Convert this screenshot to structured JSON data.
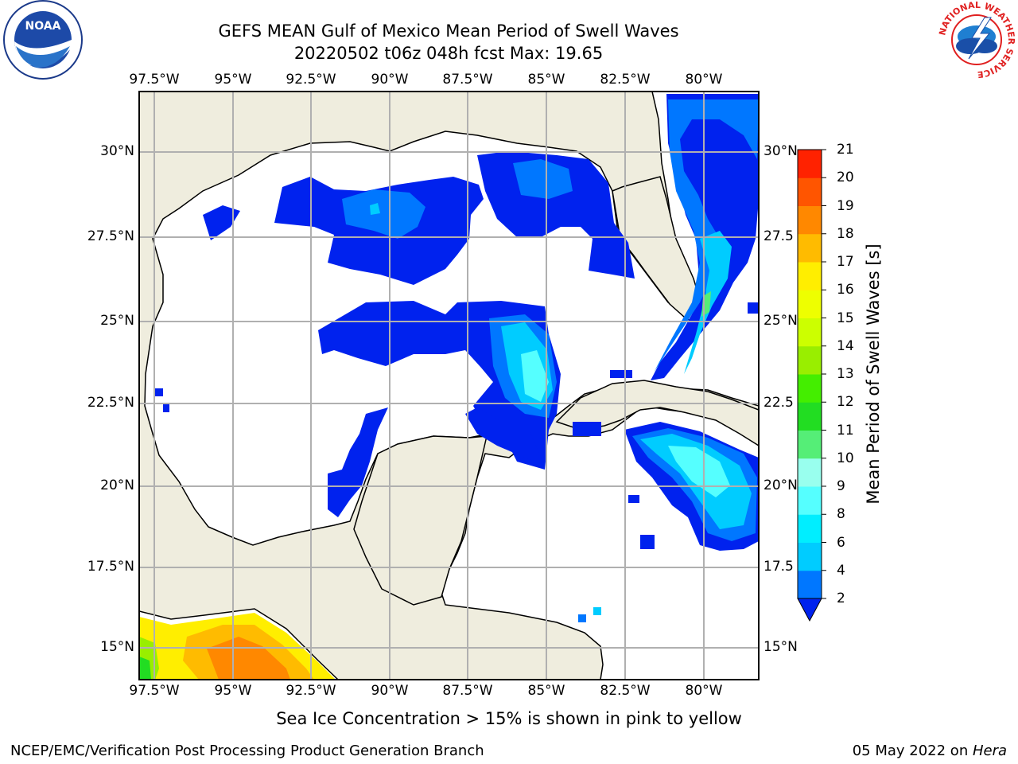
{
  "title": {
    "line1": "GEFS MEAN Gulf of Mexico Mean Period of Swell Waves",
    "line2": "20220502 t06z 048h fcst   Max: 19.65"
  },
  "map": {
    "lon_labels": [
      "97.5°W",
      "95°W",
      "92.5°W",
      "90°W",
      "87.5°W",
      "85°W",
      "82.5°W",
      "80°W"
    ],
    "lat_labels_left": [
      "30°N",
      "27.5°N",
      "25°N",
      "22.5°N",
      "20°N",
      "17.5°N",
      "15°N"
    ],
    "lat_labels_right": [
      "30°N",
      "27.5",
      "25°N",
      "22.5",
      "20°N",
      "17.5",
      "15°N"
    ],
    "land_color": "#efedde",
    "grid_color": "#b0b0b0"
  },
  "colorbar": {
    "label": "Mean Period of Swell Waves [s]",
    "ticks": [
      "2",
      "4",
      "6",
      "8",
      "9",
      "10",
      "11",
      "12",
      "13",
      "14",
      "15",
      "16",
      "17",
      "18",
      "19",
      "20",
      "21"
    ],
    "colors": [
      "#0022ee",
      "#0077ff",
      "#00ccff",
      "#00eeff",
      "#55ffff",
      "#99ffee",
      "#55ee77",
      "#22dd22",
      "#44ee00",
      "#99ee00",
      "#ccff00",
      "#eeff00",
      "#ffee00",
      "#ffbb00",
      "#ff8800",
      "#ff5500",
      "#ff2200",
      "#ff0000"
    ]
  },
  "note": "Sea Ice Concentration > 15% is shown in pink to yellow",
  "footer": {
    "left": "NCEP/EMC/Verification Post Processing Product Generation Branch",
    "right_date": "05 May 2022 on ",
    "right_host": "Hera"
  },
  "logos": {
    "noaa": "NOAA",
    "nws_ring": "NATIONAL WEATHER SERVICE"
  }
}
